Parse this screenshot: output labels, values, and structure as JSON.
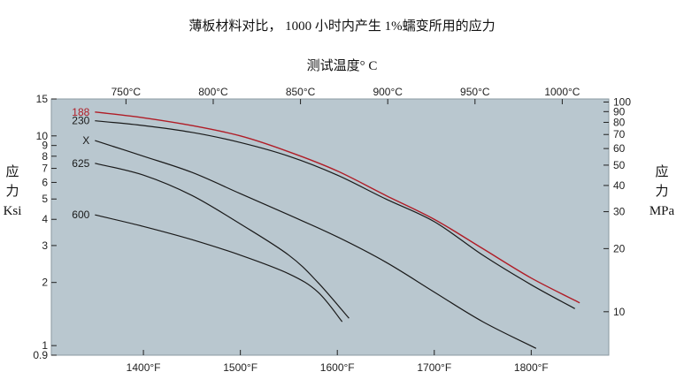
{
  "title": "薄板材料对比， 1000 小时内产生 1%蠕变所用的应力",
  "subtitle": "测试温度° C",
  "left_axis": {
    "line1": "应",
    "line2": "力",
    "unit": "Ksi"
  },
  "right_axis": {
    "line1": "应",
    "line2": "力",
    "unit": "MPa"
  },
  "colors": {
    "plot_bg": "#b9c7cf",
    "frame": "#8a98a0",
    "curve": "#1a1a1a",
    "highlight": "#b01c26",
    "text": "#222222"
  },
  "chart_data": {
    "type": "line",
    "title": "薄板材料对比， 1000 小时内产生 1%蠕变所用的应力",
    "subtitle": "测试温度° C",
    "x_scale": "linear",
    "y_scale": "log",
    "xlim": [
      1305,
      1880
    ],
    "ylim": [
      0.9,
      15
    ],
    "bottom_ticks": [
      {
        "value": 1400,
        "label": "1400°F"
      },
      {
        "value": 1500,
        "label": "1500°F"
      },
      {
        "value": 1600,
        "label": "1600°F"
      },
      {
        "value": 1700,
        "label": "1700°F"
      },
      {
        "value": 1800,
        "label": "1800°F"
      }
    ],
    "top_ticks": [
      {
        "value": 1382,
        "label": "750°C"
      },
      {
        "value": 1472,
        "label": "800°C"
      },
      {
        "value": 1562,
        "label": "850°C"
      },
      {
        "value": 1652,
        "label": "900°C"
      },
      {
        "value": 1742,
        "label": "950°C"
      },
      {
        "value": 1832,
        "label": "1000°C"
      }
    ],
    "left_ticks": [
      {
        "value": 15,
        "label": "15"
      },
      {
        "value": 10,
        "label": "10"
      },
      {
        "value": 9,
        "label": "9"
      },
      {
        "value": 8,
        "label": "8"
      },
      {
        "value": 7,
        "label": "7"
      },
      {
        "value": 6,
        "label": "6"
      },
      {
        "value": 5,
        "label": "5"
      },
      {
        "value": 4,
        "label": "4"
      },
      {
        "value": 3,
        "label": "3"
      },
      {
        "value": 2,
        "label": "2"
      },
      {
        "value": 1,
        "label": "1"
      },
      {
        "value": 0.9,
        "label": "0.9"
      }
    ],
    "right_ticks": [
      {
        "value": 100,
        "label": "100"
      },
      {
        "value": 90,
        "label": "90"
      },
      {
        "value": 80,
        "label": "80"
      },
      {
        "value": 70,
        "label": "70"
      },
      {
        "value": 60,
        "label": "60"
      },
      {
        "value": 50,
        "label": "50"
      },
      {
        "value": 40,
        "label": "40"
      },
      {
        "value": 30,
        "label": "30"
      },
      {
        "value": 20,
        "label": "20"
      },
      {
        "value": 10,
        "label": "10"
      }
    ],
    "series": [
      {
        "name": "188",
        "highlight": true,
        "points": [
          [
            1350,
            13.0
          ],
          [
            1400,
            12.2
          ],
          [
            1450,
            11.2
          ],
          [
            1500,
            10.0
          ],
          [
            1550,
            8.4
          ],
          [
            1600,
            6.8
          ],
          [
            1650,
            5.2
          ],
          [
            1700,
            4.0
          ],
          [
            1750,
            2.9
          ],
          [
            1800,
            2.1
          ],
          [
            1850,
            1.6
          ]
        ]
      },
      {
        "name": "230",
        "points": [
          [
            1350,
            11.8
          ],
          [
            1400,
            11.2
          ],
          [
            1450,
            10.4
          ],
          [
            1500,
            9.3
          ],
          [
            1550,
            8.0
          ],
          [
            1600,
            6.5
          ],
          [
            1650,
            5.0
          ],
          [
            1700,
            3.9
          ],
          [
            1750,
            2.7
          ],
          [
            1800,
            1.95
          ],
          [
            1845,
            1.5
          ]
        ]
      },
      {
        "name": "X",
        "points": [
          [
            1350,
            9.5
          ],
          [
            1400,
            8.0
          ],
          [
            1450,
            6.7
          ],
          [
            1500,
            5.3
          ],
          [
            1550,
            4.2
          ],
          [
            1600,
            3.3
          ],
          [
            1650,
            2.5
          ],
          [
            1700,
            1.8
          ],
          [
            1750,
            1.3
          ],
          [
            1805,
            0.97
          ]
        ]
      },
      {
        "name": "625",
        "points": [
          [
            1350,
            7.4
          ],
          [
            1400,
            6.5
          ],
          [
            1450,
            5.2
          ],
          [
            1500,
            3.8
          ],
          [
            1550,
            2.7
          ],
          [
            1580,
            2.0
          ],
          [
            1612,
            1.35
          ]
        ]
      },
      {
        "name": "600",
        "points": [
          [
            1350,
            4.2
          ],
          [
            1400,
            3.7
          ],
          [
            1450,
            3.2
          ],
          [
            1500,
            2.7
          ],
          [
            1550,
            2.2
          ],
          [
            1580,
            1.8
          ],
          [
            1605,
            1.3
          ]
        ]
      }
    ]
  }
}
